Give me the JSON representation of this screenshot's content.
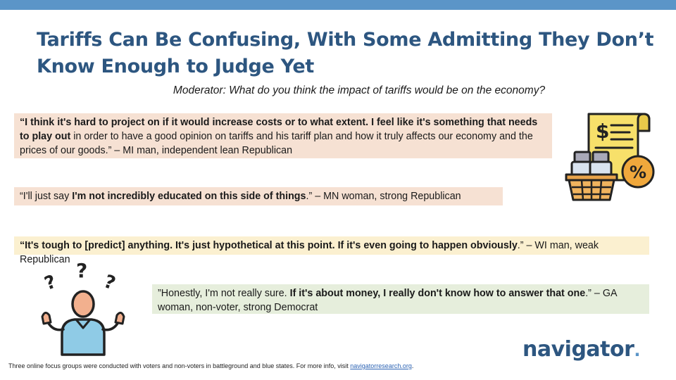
{
  "slide": {
    "title": "Tariffs Can Be Confusing, With Some Admitting They Don’t Know Enough to Judge Yet",
    "moderator": "Moderator: What do you think the impact of tariffs would be on the economy?"
  },
  "quotes": [
    {
      "parts": [
        {
          "text": "“I think it's hard to project on if it would increase costs or to what extent. I feel like it's something that needs to play out",
          "bold": true
        },
        {
          "text": " in order to have a good opinion on tariffs and his tariff plan and how it truly affects our economy and the prices of our goods.” –  MI man, independent lean Republican",
          "bold": false
        }
      ]
    },
    {
      "parts": [
        {
          "text": "“I'll just say ",
          "bold": false
        },
        {
          "text": "I'm not incredibly educated on this side of things",
          "bold": true
        },
        {
          "text": ".” – MN woman, strong Republican",
          "bold": false
        }
      ]
    },
    {
      "parts": [
        {
          "text": "“It's tough to [predict] anything. It's just hypothetical at this point. If it's even going to happen obviously",
          "bold": true
        },
        {
          "text": ".” – WI man, weak Republican",
          "bold": false
        }
      ]
    },
    {
      "parts": [
        {
          "text": "”Honestly, I'm not really sure. ",
          "bold": false
        },
        {
          "text": "If it's about money, I really don't know how to answer that one",
          "bold": true
        },
        {
          "text": ".” – GA woman, non-voter, strong Democrat",
          "bold": false
        }
      ]
    }
  ],
  "footer": {
    "text": "Three online focus groups were conducted with voters and non-voters in battleground and blue states. For more info, visit ",
    "link": "navigatorresearch.org",
    "suffix": "."
  },
  "logo": {
    "text": "navigator",
    "dot": "."
  },
  "icons": {
    "receipt": "receipt-percent-icon",
    "person": "confused-person-icon"
  },
  "colors": {
    "title": "#2d5680",
    "accent_bar": "#5b95c8",
    "quote_peach": "#f6e1d3",
    "quote_yellow": "#fbf0d0",
    "quote_green": "#e6eedc"
  }
}
